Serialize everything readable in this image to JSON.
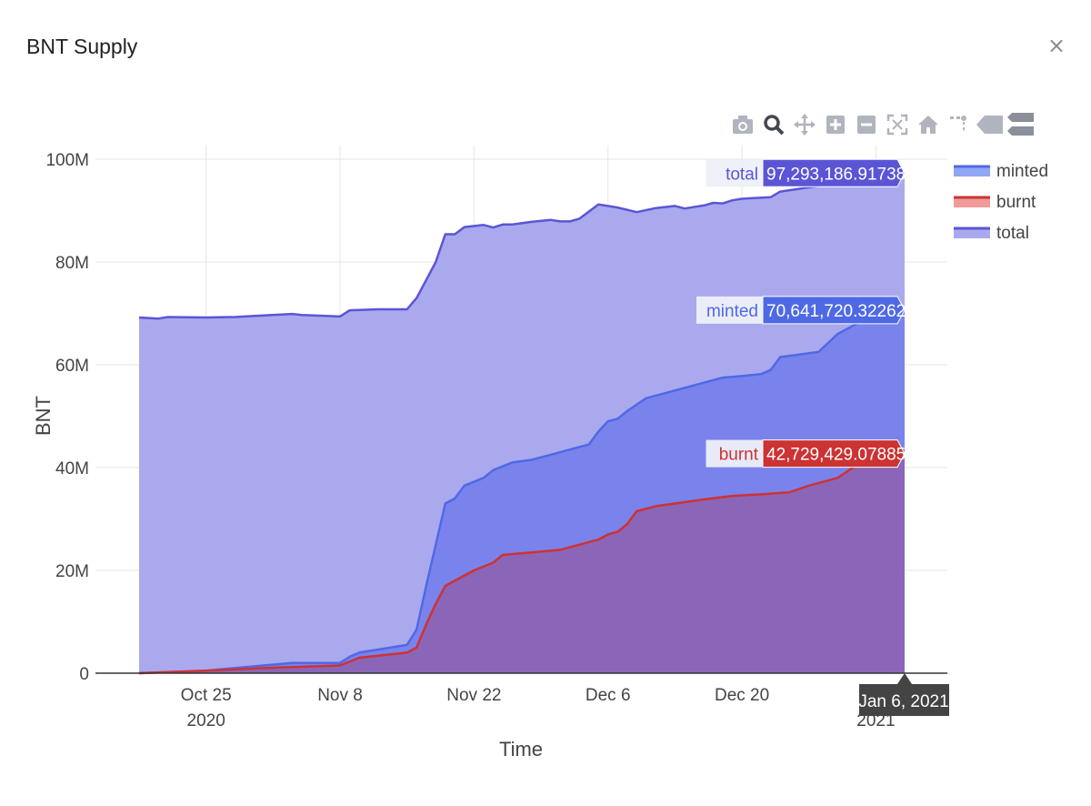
{
  "modal": {
    "title": "BNT Supply",
    "close_label": "×"
  },
  "modebar": {
    "icons": [
      "camera-icon",
      "zoom-icon",
      "pan-icon",
      "zoom-in-icon",
      "zoom-out-icon",
      "autoscale-icon",
      "reset-axes-icon",
      "spike-lines-icon",
      "hover-closest-icon",
      "hover-compare-icon"
    ]
  },
  "colors": {
    "total": "#5b55d6",
    "total_fill": "#aaa9ee",
    "minted": "#4f69e6",
    "minted_fill": "#7a83ec",
    "burnt": "#cc3333",
    "burnt_fill": "#8b66b8",
    "grid": "#e6e6e6",
    "axis_text": "#444444",
    "date_tooltip": "#444444"
  },
  "chart_data": {
    "type": "area",
    "title": "",
    "xlabel": "Time",
    "ylabel": "BNT",
    "x_ticks": [
      {
        "date": "2020-10-25",
        "line1": "Oct 25",
        "line2": "2020"
      },
      {
        "date": "2020-11-08",
        "line1": "Nov 8",
        "line2": ""
      },
      {
        "date": "2020-11-22",
        "line1": "Nov 22",
        "line2": ""
      },
      {
        "date": "2020-12-06",
        "line1": "Dec 6",
        "line2": ""
      },
      {
        "date": "2020-12-20",
        "line1": "Dec 20",
        "line2": ""
      },
      {
        "date": "2021-01-03",
        "line1": "",
        "line2": "2021"
      }
    ],
    "y_ticks": [
      {
        "value": 0,
        "label": "0"
      },
      {
        "value": 20000000,
        "label": "20M"
      },
      {
        "value": 40000000,
        "label": "40M"
      },
      {
        "value": 60000000,
        "label": "60M"
      },
      {
        "value": 80000000,
        "label": "80M"
      },
      {
        "value": 100000000,
        "label": "100M"
      }
    ],
    "xlim": [
      "2020-10-18",
      "2021-01-06"
    ],
    "ylim": [
      0,
      100000000
    ],
    "grid": true,
    "legend_position": "top-right",
    "series": [
      {
        "name": "minted",
        "color": "#4f69e6",
        "fill": "#7a83ec",
        "points": [
          [
            "2020-10-18",
            0
          ],
          [
            "2020-10-25",
            500000
          ],
          [
            "2020-10-31",
            1500000
          ],
          [
            "2020-11-03",
            2000000
          ],
          [
            "2020-11-08",
            2000000
          ],
          [
            "2020-11-09",
            3200000
          ],
          [
            "2020-11-10",
            4000000
          ],
          [
            "2020-11-15",
            5500000
          ],
          [
            "2020-11-16",
            8500000
          ],
          [
            "2020-11-17",
            17000000
          ],
          [
            "2020-11-18",
            25000000
          ],
          [
            "2020-11-19",
            33000000
          ],
          [
            "2020-11-20",
            34000000
          ],
          [
            "2020-11-21",
            36500000
          ],
          [
            "2020-11-23",
            38000000
          ],
          [
            "2020-11-24",
            39500000
          ],
          [
            "2020-11-26",
            41000000
          ],
          [
            "2020-11-28",
            41500000
          ],
          [
            "2020-11-30",
            42500000
          ],
          [
            "2020-12-02",
            43500000
          ],
          [
            "2020-12-04",
            44500000
          ],
          [
            "2020-12-05",
            47000000
          ],
          [
            "2020-12-06",
            49000000
          ],
          [
            "2020-12-07",
            49500000
          ],
          [
            "2020-12-08",
            51000000
          ],
          [
            "2020-12-10",
            53500000
          ],
          [
            "2020-12-12",
            54500000
          ],
          [
            "2020-12-15",
            56000000
          ],
          [
            "2020-12-18",
            57500000
          ],
          [
            "2020-12-20",
            57800000
          ],
          [
            "2020-12-22",
            58200000
          ],
          [
            "2020-12-23",
            59000000
          ],
          [
            "2020-12-24",
            61500000
          ],
          [
            "2020-12-26",
            62000000
          ],
          [
            "2020-12-28",
            62500000
          ],
          [
            "2020-12-30",
            66000000
          ],
          [
            "2021-01-01",
            68000000
          ],
          [
            "2021-01-04",
            70000000
          ],
          [
            "2021-01-06",
            70641720.32262
          ]
        ]
      },
      {
        "name": "burnt",
        "color": "#cc3333",
        "fill": "#8b66b8",
        "points": [
          [
            "2020-10-18",
            0
          ],
          [
            "2020-10-25",
            500000
          ],
          [
            "2020-10-31",
            1000000
          ],
          [
            "2020-11-08",
            1500000
          ],
          [
            "2020-11-10",
            3000000
          ],
          [
            "2020-11-15",
            4000000
          ],
          [
            "2020-11-16",
            5000000
          ],
          [
            "2020-11-17",
            9500000
          ],
          [
            "2020-11-18",
            13500000
          ],
          [
            "2020-11-19",
            17000000
          ],
          [
            "2020-11-21",
            19000000
          ],
          [
            "2020-11-22",
            20000000
          ],
          [
            "2020-11-24",
            21500000
          ],
          [
            "2020-11-25",
            23000000
          ],
          [
            "2020-11-28",
            23500000
          ],
          [
            "2020-12-01",
            24000000
          ],
          [
            "2020-12-03",
            25000000
          ],
          [
            "2020-12-05",
            26000000
          ],
          [
            "2020-12-06",
            27000000
          ],
          [
            "2020-12-07",
            27500000
          ],
          [
            "2020-12-08",
            29000000
          ],
          [
            "2020-12-09",
            31500000
          ],
          [
            "2020-12-11",
            32500000
          ],
          [
            "2020-12-13",
            33000000
          ],
          [
            "2020-12-16",
            33800000
          ],
          [
            "2020-12-19",
            34500000
          ],
          [
            "2020-12-22",
            34800000
          ],
          [
            "2020-12-25",
            35200000
          ],
          [
            "2020-12-27",
            36500000
          ],
          [
            "2020-12-30",
            38000000
          ],
          [
            "2021-01-01",
            40500000
          ],
          [
            "2021-01-04",
            42000000
          ],
          [
            "2021-01-06",
            42729429.07885
          ]
        ]
      },
      {
        "name": "total",
        "color": "#5b55d6",
        "fill": "#aaa9ee",
        "points": [
          [
            "2020-10-18",
            69200000
          ],
          [
            "2020-10-20",
            69000000
          ],
          [
            "2020-10-21",
            69300000
          ],
          [
            "2020-10-25",
            69200000
          ],
          [
            "2020-10-28",
            69300000
          ],
          [
            "2020-10-31",
            69600000
          ],
          [
            "2020-11-03",
            69900000
          ],
          [
            "2020-11-04",
            69700000
          ],
          [
            "2020-11-08",
            69400000
          ],
          [
            "2020-11-09",
            70600000
          ],
          [
            "2020-11-12",
            70800000
          ],
          [
            "2020-11-15",
            70800000
          ],
          [
            "2020-11-16",
            73000000
          ],
          [
            "2020-11-17",
            76500000
          ],
          [
            "2020-11-18",
            80000000
          ],
          [
            "2020-11-19",
            85400000
          ],
          [
            "2020-11-20",
            85400000
          ],
          [
            "2020-11-21",
            86800000
          ],
          [
            "2020-11-23",
            87200000
          ],
          [
            "2020-11-24",
            86700000
          ],
          [
            "2020-11-25",
            87300000
          ],
          [
            "2020-11-26",
            87300000
          ],
          [
            "2020-11-28",
            87800000
          ],
          [
            "2020-11-30",
            88200000
          ],
          [
            "2020-12-01",
            87900000
          ],
          [
            "2020-12-02",
            87900000
          ],
          [
            "2020-12-03",
            88400000
          ],
          [
            "2020-12-05",
            91200000
          ],
          [
            "2020-12-07",
            90600000
          ],
          [
            "2020-12-09",
            89700000
          ],
          [
            "2020-12-11",
            90500000
          ],
          [
            "2020-12-13",
            90900000
          ],
          [
            "2020-12-14",
            90400000
          ],
          [
            "2020-12-16",
            91000000
          ],
          [
            "2020-12-17",
            91500000
          ],
          [
            "2020-12-18",
            91400000
          ],
          [
            "2020-12-19",
            92000000
          ],
          [
            "2020-12-20",
            92300000
          ],
          [
            "2020-12-21",
            92400000
          ],
          [
            "2020-12-23",
            92600000
          ],
          [
            "2020-12-24",
            93700000
          ],
          [
            "2020-12-28",
            94800000
          ],
          [
            "2021-01-01",
            96000000
          ],
          [
            "2021-01-04",
            96800000
          ],
          [
            "2021-01-06",
            97293186.91738
          ]
        ]
      }
    ],
    "hover": {
      "date_label": "Jan 6, 2021",
      "labels": [
        {
          "series": "total",
          "name": "total",
          "value": "97,293,186.91738"
        },
        {
          "series": "minted",
          "name": "minted",
          "value": "70,641,720.32262"
        },
        {
          "series": "burnt",
          "name": "burnt",
          "value": "42,729,429.07885"
        }
      ]
    }
  }
}
